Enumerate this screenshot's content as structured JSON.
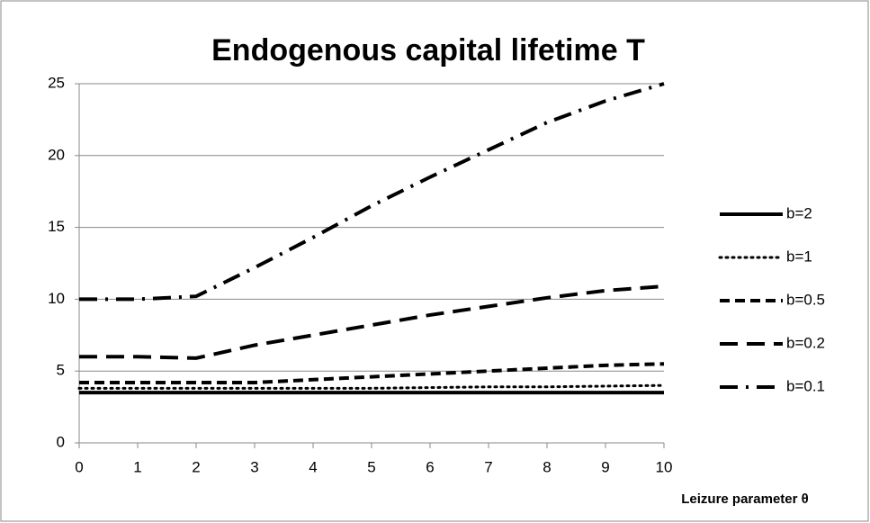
{
  "chart_data": {
    "type": "line",
    "title": "Endogenous capital lifetime T",
    "x_label": "Leizure parameter θ",
    "x": [
      0,
      1,
      2,
      3,
      4,
      5,
      6,
      7,
      8,
      9,
      10
    ],
    "xlim": [
      0,
      10
    ],
    "xticks": [
      0,
      1,
      2,
      3,
      4,
      5,
      6,
      7,
      8,
      9,
      10
    ],
    "ylim": [
      0,
      25
    ],
    "yticks": [
      0,
      5,
      10,
      15,
      20,
      25
    ],
    "grid": true,
    "legend": "right",
    "series": [
      {
        "name": "b=2",
        "color": "#000000",
        "dash": "solid",
        "values": [
          3.5,
          3.5,
          3.5,
          3.5,
          3.5,
          3.5,
          3.5,
          3.5,
          3.5,
          3.5,
          3.5
        ]
      },
      {
        "name": "b=1",
        "color": "#000000",
        "dash": "dotted",
        "values": [
          3.8,
          3.8,
          3.8,
          3.8,
          3.8,
          3.8,
          3.85,
          3.9,
          3.9,
          3.95,
          4.0
        ]
      },
      {
        "name": "b=0.5",
        "color": "#000000",
        "dash": "dashed",
        "values": [
          4.2,
          4.2,
          4.2,
          4.2,
          4.4,
          4.6,
          4.8,
          5.0,
          5.2,
          5.4,
          5.5
        ]
      },
      {
        "name": "b=0.2",
        "color": "#000000",
        "dash": "longdash",
        "values": [
          6.0,
          6.0,
          5.9,
          6.8,
          7.5,
          8.2,
          8.9,
          9.5,
          10.1,
          10.6,
          10.9
        ]
      },
      {
        "name": "b=0.1",
        "color": "#000000",
        "dash": "dashdot",
        "values": [
          10.0,
          10.0,
          10.2,
          12.2,
          14.3,
          16.5,
          18.5,
          20.4,
          22.3,
          23.8,
          25.0
        ]
      }
    ]
  }
}
